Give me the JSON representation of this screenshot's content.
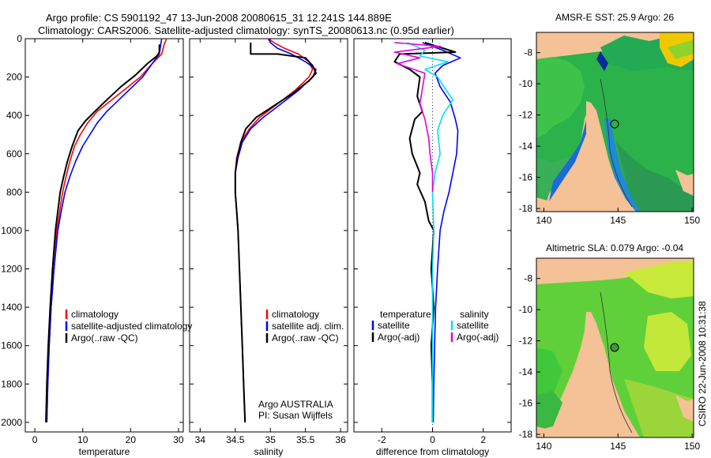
{
  "header": {
    "line1": "Argo profile: CS 5901192_47 13-Jun-2008 20080615_31 12.241S 144.889E",
    "line2": "Climatology: CARS2006. Satellite-adjusted climatology: synTS_20080613.nc (0.95d earlier)"
  },
  "side_label": "CSIRO 22-Jun-2008 10:31:38",
  "colors": {
    "climatology": "#ff0000",
    "satellite": "#0000ff",
    "argo": "#000000",
    "sat_salinity": "#00e0f0",
    "argo_salinity": "#e000e0"
  },
  "chart_data": [
    {
      "type": "line",
      "xlabel": "temperature",
      "xlim": [
        -2,
        31
      ],
      "ylim": [
        2050,
        0
      ],
      "xticks": [
        0,
        10,
        20,
        30
      ],
      "yticks": [
        0,
        200,
        400,
        600,
        800,
        1000,
        1200,
        1400,
        1600,
        1800,
        2000
      ],
      "legend": [
        "climatology",
        "satellite-adjusted climatology",
        "Argo(..raw -QC)"
      ],
      "series": [
        {
          "name": "climatology",
          "color": "#ff0000",
          "points": [
            [
              27.5,
              0
            ],
            [
              27,
              30
            ],
            [
              26.5,
              80
            ],
            [
              24.5,
              130
            ],
            [
              22,
              200
            ],
            [
              19,
              260
            ],
            [
              16,
              320
            ],
            [
              13,
              380
            ],
            [
              11,
              440
            ],
            [
              9.5,
              500
            ],
            [
              8.3,
              560
            ],
            [
              7.3,
              640
            ],
            [
              6.5,
              720
            ],
            [
              5.8,
              800
            ],
            [
              5.2,
              900
            ],
            [
              4.6,
              1000
            ],
            [
              4,
              1200
            ],
            [
              3.4,
              1400
            ],
            [
              3,
              1600
            ],
            [
              2.7,
              1800
            ],
            [
              2.5,
              2000
            ]
          ]
        },
        {
          "name": "satellite-adjusted climatology",
          "color": "#0000ff",
          "points": [
            [
              26.5,
              0
            ],
            [
              26.3,
              30
            ],
            [
              26,
              80
            ],
            [
              24.5,
              130
            ],
            [
              22.5,
              200
            ],
            [
              20,
              260
            ],
            [
              17.5,
              320
            ],
            [
              15,
              380
            ],
            [
              13,
              440
            ],
            [
              11.5,
              500
            ],
            [
              10,
              560
            ],
            [
              8.5,
              640
            ],
            [
              7.3,
              720
            ],
            [
              6.3,
              800
            ],
            [
              5.5,
              900
            ],
            [
              4.8,
              1000
            ],
            [
              4,
              1200
            ],
            [
              3.4,
              1400
            ],
            [
              3,
              1600
            ],
            [
              2.7,
              1800
            ],
            [
              2.5,
              2000
            ]
          ]
        },
        {
          "name": "Argo(..raw -QC)",
          "color": "#000000",
          "points": [
            [
              26,
              30
            ],
            [
              26,
              70
            ],
            [
              25.5,
              90
            ],
            [
              23.5,
              130
            ],
            [
              21,
              190
            ],
            [
              18,
              250
            ],
            [
              15,
              320
            ],
            [
              12.5,
              380
            ],
            [
              10.5,
              430
            ],
            [
              9,
              480
            ],
            [
              7.8,
              560
            ],
            [
              6.8,
              640
            ],
            [
              6,
              720
            ],
            [
              5.3,
              800
            ],
            [
              4.8,
              900
            ],
            [
              4.3,
              1000
            ],
            [
              3.7,
              1200
            ],
            [
              3.2,
              1400
            ],
            [
              2.8,
              1600
            ],
            [
              2.5,
              1800
            ],
            [
              2.3,
              2000
            ]
          ]
        }
      ]
    },
    {
      "type": "line",
      "xlabel": "salinity",
      "xlim": [
        33.85,
        36.1
      ],
      "ylim": [
        2050,
        0
      ],
      "xticks": [
        34,
        34.5,
        35,
        35.5,
        36
      ],
      "legend": [
        "climatology",
        "satellite adj. clim.",
        "Argo(..raw -QC)"
      ],
      "annotation": [
        "Argo AUSTRALIA",
        "PI: Susan Wijffels"
      ],
      "series": [
        {
          "name": "climatology",
          "color": "#ff0000",
          "points": [
            [
              34.97,
              0
            ],
            [
              35.05,
              20
            ],
            [
              35.2,
              50
            ],
            [
              35.4,
              80
            ],
            [
              35.55,
              120
            ],
            [
              35.6,
              160
            ],
            [
              35.55,
              200
            ],
            [
              35.35,
              270
            ],
            [
              35.1,
              340
            ],
            [
              34.85,
              410
            ],
            [
              34.7,
              470
            ],
            [
              34.58,
              540
            ],
            [
              34.52,
              620
            ],
            [
              34.5,
              700
            ],
            [
              34.5,
              800
            ],
            [
              34.52,
              900
            ],
            [
              34.54,
              1000
            ],
            [
              34.56,
              1200
            ],
            [
              34.58,
              1400
            ],
            [
              34.6,
              1600
            ],
            [
              34.62,
              1800
            ],
            [
              34.64,
              2000
            ]
          ]
        },
        {
          "name": "satellite adj. clim.",
          "color": "#0000ff",
          "points": [
            [
              34.97,
              0
            ],
            [
              35,
              20
            ],
            [
              35.1,
              50
            ],
            [
              35.3,
              80
            ],
            [
              35.5,
              120
            ],
            [
              35.65,
              160
            ],
            [
              35.6,
              200
            ],
            [
              35.4,
              270
            ],
            [
              35.15,
              340
            ],
            [
              34.9,
              410
            ],
            [
              34.72,
              470
            ],
            [
              34.6,
              540
            ],
            [
              34.54,
              620
            ],
            [
              34.5,
              700
            ],
            [
              34.5,
              800
            ],
            [
              34.52,
              900
            ],
            [
              34.54,
              1000
            ],
            [
              34.56,
              1200
            ],
            [
              34.58,
              1400
            ],
            [
              34.6,
              1600
            ],
            [
              34.62,
              1800
            ],
            [
              34.64,
              2000
            ]
          ]
        },
        {
          "name": "Argo(..raw -QC)",
          "color": "#000000",
          "points": [
            [
              34.72,
              20
            ],
            [
              34.72,
              80
            ],
            [
              35.1,
              80
            ],
            [
              35.5,
              100
            ],
            [
              35.6,
              140
            ],
            [
              35.65,
              180
            ],
            [
              35.55,
              220
            ],
            [
              35.3,
              290
            ],
            [
              35.05,
              350
            ],
            [
              34.8,
              410
            ],
            [
              34.65,
              470
            ],
            [
              34.58,
              540
            ],
            [
              34.53,
              620
            ],
            [
              34.5,
              700
            ],
            [
              34.5,
              800
            ],
            [
              34.52,
              900
            ],
            [
              34.54,
              1000
            ],
            [
              34.56,
              1200
            ],
            [
              34.58,
              1400
            ],
            [
              34.6,
              1600
            ],
            [
              34.62,
              1800
            ],
            [
              34.64,
              2000
            ]
          ]
        }
      ]
    },
    {
      "type": "line",
      "xlabel": "difference from climatology",
      "xlim": [
        -3.1,
        3.1
      ],
      "ylim": [
        2050,
        0
      ],
      "xticks": [
        -2,
        0,
        2
      ],
      "legend": [
        "temperature",
        "satellite",
        "Argo(-adj)",
        "salinity",
        "satellite",
        "Argo(-adj)"
      ],
      "series": [
        {
          "name": "temperature satellite",
          "color": "#0000ff",
          "points": [
            [
              -0.4,
              20
            ],
            [
              0.4,
              60
            ],
            [
              1.1,
              100
            ],
            [
              0.4,
              140
            ],
            [
              0.1,
              180
            ],
            [
              0.3,
              250
            ],
            [
              0.7,
              330
            ],
            [
              0.9,
              420
            ],
            [
              1,
              480
            ],
            [
              0.95,
              600
            ],
            [
              0.8,
              700
            ],
            [
              0.65,
              800
            ],
            [
              0.45,
              900
            ],
            [
              0.3,
              1000
            ],
            [
              0.2,
              1200
            ],
            [
              0.12,
              1400
            ],
            [
              0.08,
              1600
            ],
            [
              0.05,
              1800
            ],
            [
              0.03,
              2000
            ]
          ]
        },
        {
          "name": "temperature Argo(-adj)",
          "color": "#000000",
          "points": [
            [
              -0.3,
              20
            ],
            [
              0.9,
              70
            ],
            [
              -1.3,
              80
            ],
            [
              -1.5,
              120
            ],
            [
              -0.9,
              160
            ],
            [
              -0.5,
              200
            ],
            [
              -0.6,
              300
            ],
            [
              -0.4,
              380
            ],
            [
              -0.7,
              420
            ],
            [
              -0.9,
              520
            ],
            [
              -0.8,
              600
            ],
            [
              -0.5,
              700
            ],
            [
              -0.6,
              760
            ],
            [
              -0.3,
              850
            ],
            [
              -0.15,
              950
            ],
            [
              0.05,
              1000
            ],
            [
              -0.05,
              1200
            ],
            [
              0.05,
              1400
            ],
            [
              -0.05,
              1600
            ],
            [
              0,
              1800
            ],
            [
              0,
              2000
            ]
          ]
        },
        {
          "name": "salinity satellite",
          "color": "#00e0f0",
          "points": [
            [
              -1,
              20
            ],
            [
              -0.3,
              60
            ],
            [
              -0.5,
              90
            ],
            [
              0.6,
              120
            ],
            [
              -0.3,
              160
            ],
            [
              0.2,
              200
            ],
            [
              0.5,
              260
            ],
            [
              0.8,
              320
            ],
            [
              0.4,
              400
            ],
            [
              0.2,
              480
            ],
            [
              0.3,
              600
            ],
            [
              0.1,
              700
            ],
            [
              0,
              800
            ],
            [
              0.05,
              1000
            ],
            [
              0,
              1200
            ],
            [
              0,
              1400
            ],
            [
              0,
              1600
            ],
            [
              0,
              1800
            ],
            [
              0,
              2000
            ]
          ]
        },
        {
          "name": "salinity Argo(-adj)",
          "color": "#e000e0",
          "points": [
            [
              -1.5,
              20
            ],
            [
              0.3,
              40
            ],
            [
              -1.5,
              70
            ],
            [
              -0.5,
              100
            ],
            [
              -1.4,
              130
            ],
            [
              -0.3,
              180
            ],
            [
              -0.4,
              260
            ],
            [
              -0.5,
              340
            ],
            [
              -0.3,
              420
            ],
            [
              -0.15,
              520
            ],
            [
              -0.1,
              600
            ],
            [
              0,
              700
            ],
            [
              0,
              800
            ]
          ]
        }
      ]
    }
  ],
  "maps": [
    {
      "title": "AMSR-E SST: 25.9 Argo: 26",
      "xticks": [
        140,
        145,
        150
      ],
      "yticks": [
        -8,
        -10,
        -12,
        -14,
        -16,
        -18
      ]
    },
    {
      "title": "Altimetric SLA: 0.079 Argo: -0.04",
      "xticks": [
        140,
        145,
        150
      ],
      "yticks": [
        -8,
        -10,
        -12,
        -14,
        -16,
        -18
      ]
    }
  ]
}
